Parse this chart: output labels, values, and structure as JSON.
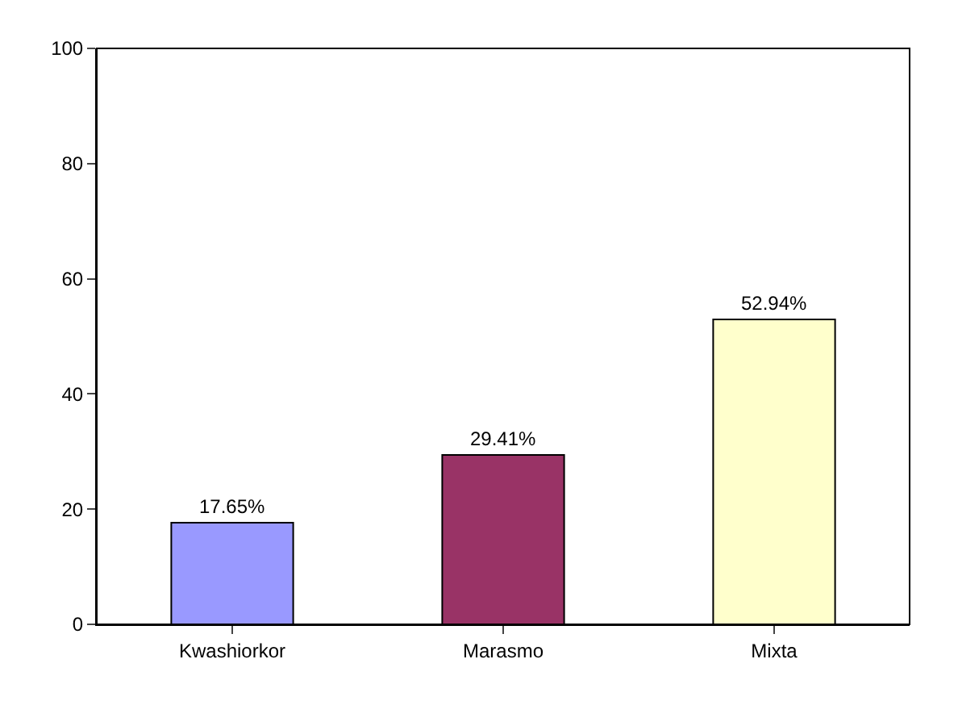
{
  "chart_data": {
    "type": "bar",
    "categories": [
      "Kwashiorkor",
      "Marasmo",
      "Mixta"
    ],
    "values": [
      17.65,
      29.41,
      52.94
    ],
    "colors": [
      "#9999ff",
      "#993366",
      "#ffffcc"
    ],
    "value_labels": [
      "17.65%",
      "29.41%",
      "52.94%"
    ],
    "ylim": [
      0,
      100
    ],
    "yticks": [
      0,
      20,
      40,
      60,
      80,
      100
    ],
    "grid": false,
    "legend": false
  }
}
